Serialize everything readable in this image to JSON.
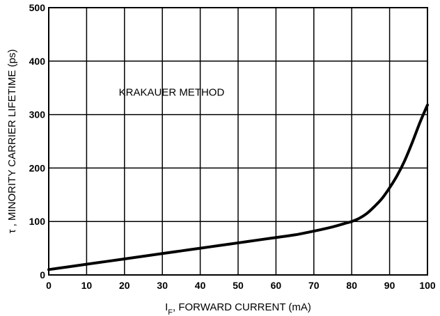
{
  "chart_data": {
    "type": "line",
    "title": "",
    "annotation": "KRAKAUER METHOD",
    "xlabel": {
      "prefix": "I",
      "subscript": "F",
      "text": ", FORWARD CURRENT (mA)"
    },
    "ylabel": "τ , MINORITY CARRIER LIFETIME (ps)",
    "xlim": [
      0,
      100
    ],
    "ylim": [
      0,
      500
    ],
    "x_ticks": [
      0,
      10,
      20,
      30,
      40,
      50,
      60,
      70,
      80,
      90,
      100
    ],
    "y_ticks": [
      0,
      100,
      200,
      300,
      400,
      500
    ],
    "grid": true,
    "series": [
      {
        "x": [
          0,
          5,
          10,
          15,
          20,
          25,
          30,
          35,
          40,
          45,
          50,
          55,
          60,
          65,
          70,
          75,
          78,
          80,
          82,
          84,
          86,
          88,
          90,
          92,
          94,
          96,
          98,
          100
        ],
        "y": [
          10,
          15,
          20,
          25,
          30,
          35,
          40,
          45,
          50,
          55,
          60,
          65,
          70,
          75,
          82,
          90,
          96,
          100,
          106,
          115,
          128,
          143,
          163,
          186,
          214,
          248,
          285,
          318
        ]
      }
    ]
  }
}
